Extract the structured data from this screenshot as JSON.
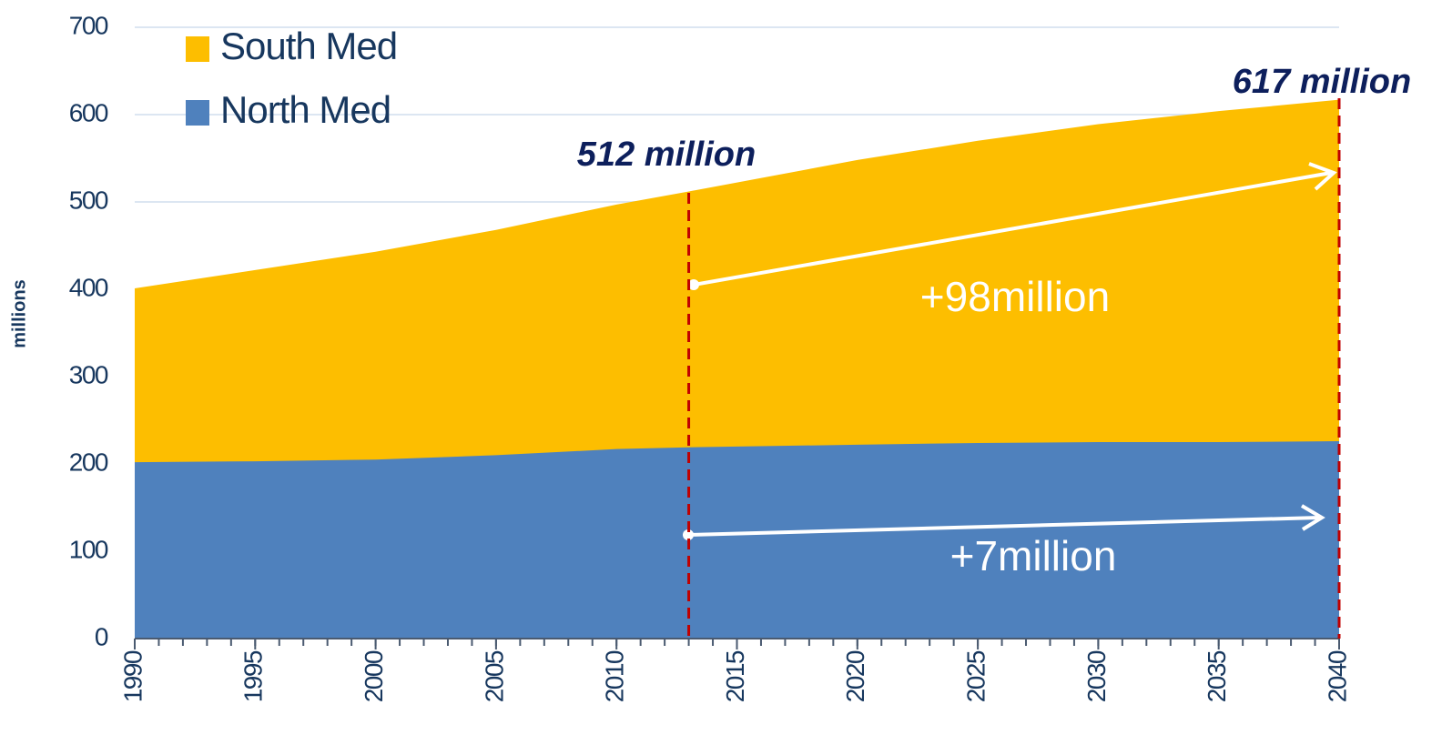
{
  "chart_data": {
    "type": "stacked-area",
    "y_label": "millions",
    "x": [
      1990,
      1995,
      2000,
      2005,
      2010,
      2013,
      2020,
      2025,
      2030,
      2035,
      2040
    ],
    "series": [
      {
        "name": "North Med",
        "color": "#4f81bd",
        "values": [
          202,
          203,
          205,
          210,
          217,
          219,
          222,
          224,
          225,
          225,
          226
        ]
      },
      {
        "name": "South Med",
        "color": "#fdbe00",
        "values": [
          199,
          219,
          238,
          258,
          280,
          293,
          326,
          346,
          364,
          379,
          391
        ]
      }
    ],
    "xlim": [
      1990,
      2040
    ],
    "xticks": [
      1990,
      1995,
      2000,
      2005,
      2010,
      2015,
      2020,
      2025,
      2030,
      2035,
      2040
    ],
    "ylim": [
      0,
      700
    ],
    "yticks": [
      0,
      100,
      200,
      300,
      400,
      500,
      600,
      700
    ],
    "grid": true,
    "vlines": [
      2013,
      2040
    ],
    "annotations": [
      "512 million",
      "617 million",
      "+98million",
      "+7million"
    ]
  }
}
